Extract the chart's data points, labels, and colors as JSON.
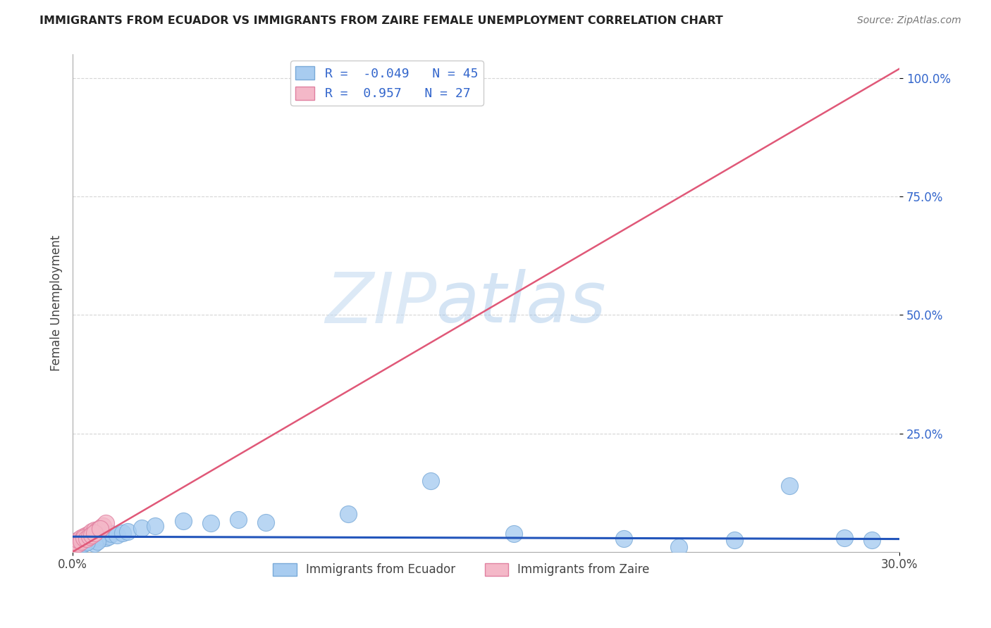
{
  "title": "IMMIGRANTS FROM ECUADOR VS IMMIGRANTS FROM ZAIRE FEMALE UNEMPLOYMENT CORRELATION CHART",
  "source_text": "Source: ZipAtlas.com",
  "ylabel": "Female Unemployment",
  "watermark": "ZIPatlas",
  "xlim": [
    0.0,
    0.3
  ],
  "ylim": [
    0.0,
    1.05
  ],
  "xtick_positions": [
    0.0,
    0.3
  ],
  "xtick_labels": [
    "0.0%",
    "30.0%"
  ],
  "ytick_values": [
    0.25,
    0.5,
    0.75,
    1.0
  ],
  "ytick_labels": [
    "25.0%",
    "50.0%",
    "75.0%",
    "100.0%"
  ],
  "ecuador_color": "#A8CCF0",
  "ecuador_edge": "#7AAAD8",
  "zaire_color": "#F4B8C8",
  "zaire_edge": "#E080A0",
  "ecuador_line_color": "#2255BB",
  "zaire_line_color": "#E05878",
  "text_blue": "#3366CC",
  "ecuador_R": -0.049,
  "ecuador_N": 45,
  "zaire_R": 0.957,
  "zaire_N": 27,
  "legend_label_ecuador": "Immigrants from Ecuador",
  "legend_label_zaire": "Immigrants from Zaire",
  "background_color": "#FFFFFF",
  "grid_color": "#CCCCCC",
  "ecuador_x": [
    0.001,
    0.002,
    0.002,
    0.003,
    0.003,
    0.004,
    0.004,
    0.005,
    0.005,
    0.006,
    0.006,
    0.007,
    0.007,
    0.008,
    0.008,
    0.009,
    0.01,
    0.01,
    0.011,
    0.012,
    0.013,
    0.014,
    0.016,
    0.018,
    0.02,
    0.025,
    0.03,
    0.04,
    0.05,
    0.06,
    0.07,
    0.1,
    0.13,
    0.16,
    0.2,
    0.22,
    0.24,
    0.26,
    0.28,
    0.29,
    0.008,
    0.009,
    0.003,
    0.004,
    0.005
  ],
  "ecuador_y": [
    0.02,
    0.018,
    0.025,
    0.022,
    0.028,
    0.02,
    0.025,
    0.022,
    0.03,
    0.025,
    0.028,
    0.03,
    0.032,
    0.025,
    0.028,
    0.03,
    0.028,
    0.032,
    0.035,
    0.03,
    0.032,
    0.038,
    0.035,
    0.04,
    0.042,
    0.05,
    0.055,
    0.065,
    0.06,
    0.068,
    0.062,
    0.08,
    0.15,
    0.038,
    0.028,
    0.01,
    0.025,
    0.14,
    0.03,
    0.025,
    0.018,
    0.022,
    0.015,
    0.018,
    0.02
  ],
  "zaire_x": [
    0.001,
    0.001,
    0.002,
    0.002,
    0.003,
    0.003,
    0.004,
    0.004,
    0.005,
    0.005,
    0.006,
    0.006,
    0.007,
    0.007,
    0.008,
    0.008,
    0.009,
    0.01,
    0.011,
    0.012,
    0.003,
    0.004,
    0.005,
    0.006,
    0.007,
    0.008,
    0.01
  ],
  "zaire_y": [
    0.015,
    0.02,
    0.018,
    0.025,
    0.025,
    0.03,
    0.028,
    0.032,
    0.03,
    0.035,
    0.035,
    0.038,
    0.038,
    0.042,
    0.04,
    0.045,
    0.045,
    0.05,
    0.055,
    0.06,
    0.022,
    0.03,
    0.028,
    0.032,
    0.036,
    0.04,
    0.048
  ],
  "zaire_line_x0": 0.0,
  "zaire_line_y0": 0.0,
  "zaire_line_x1": 0.3,
  "zaire_line_y1": 1.02,
  "ecuador_line_x0": 0.0,
  "ecuador_line_y0": 0.032,
  "ecuador_line_x1": 0.3,
  "ecuador_line_y1": 0.027
}
